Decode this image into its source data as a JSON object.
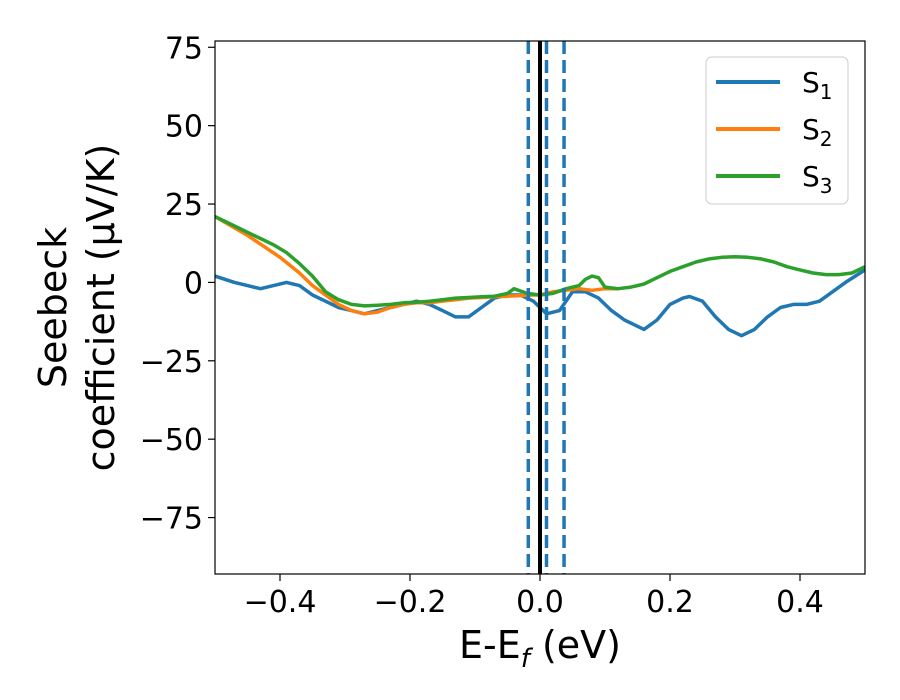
{
  "chart_data": {
    "type": "line",
    "xlabel": {
      "main": "E-E",
      "sub": "f",
      "unit": " (eV)"
    },
    "ylabel": {
      "line1": "Seebeck",
      "line2": "coefficient  (μV/K)"
    },
    "xlim": [
      -0.5,
      0.5
    ],
    "ylim": [
      -93,
      77
    ],
    "xticks": [
      -0.4,
      -0.2,
      0.0,
      0.2,
      0.4
    ],
    "xtick_labels": [
      "−0.4",
      "−0.2",
      "0.0",
      "0.2",
      "0.4"
    ],
    "yticks": [
      75,
      50,
      25,
      0,
      -25,
      -50,
      -75
    ],
    "ytick_labels": [
      "75",
      "50",
      "25",
      "0",
      "−25",
      "−50",
      "−75"
    ],
    "grid": false,
    "legend_position": "top-right",
    "series": [
      {
        "name": "S",
        "sub": "1",
        "color": "#1f77b4",
        "x": [
          -0.5,
          -0.47,
          -0.45,
          -0.43,
          -0.41,
          -0.39,
          -0.37,
          -0.35,
          -0.33,
          -0.31,
          -0.29,
          -0.27,
          -0.25,
          -0.23,
          -0.21,
          -0.19,
          -0.17,
          -0.15,
          -0.13,
          -0.11,
          -0.09,
          -0.07,
          -0.05,
          -0.03,
          -0.01,
          0.0,
          0.01,
          0.03,
          0.05,
          0.07,
          0.09,
          0.11,
          0.13,
          0.15,
          0.16,
          0.18,
          0.2,
          0.22,
          0.23,
          0.25,
          0.27,
          0.29,
          0.31,
          0.33,
          0.35,
          0.37,
          0.39,
          0.41,
          0.43,
          0.45,
          0.47,
          0.5
        ],
        "y": [
          2,
          0,
          -1,
          -2,
          -1,
          0,
          -1,
          -4,
          -6,
          -8,
          -9,
          -10,
          -9,
          -8,
          -7,
          -6,
          -7,
          -9,
          -11,
          -11,
          -8,
          -5,
          -4,
          -4,
          -6,
          -8,
          -10,
          -9,
          -3,
          -3,
          -5,
          -9,
          -12,
          -14,
          -15,
          -12,
          -7,
          -5,
          -4.5,
          -6,
          -11,
          -15,
          -17,
          -15,
          -11,
          -8,
          -7,
          -7,
          -6,
          -3,
          0,
          4
        ]
      },
      {
        "name": "S",
        "sub": "2",
        "color": "#ff7f0e",
        "x": [
          -0.5,
          -0.45,
          -0.4,
          -0.37,
          -0.35,
          -0.33,
          -0.31,
          -0.29,
          -0.27,
          -0.25,
          -0.23,
          -0.21,
          -0.19,
          -0.17,
          -0.15,
          -0.13,
          -0.11,
          -0.09,
          -0.07,
          -0.05,
          -0.03,
          -0.01,
          0.0,
          0.02,
          0.04,
          0.06,
          0.08,
          0.1,
          0.12
        ],
        "y": [
          21,
          15,
          8,
          3,
          -1,
          -4,
          -7,
          -9,
          -10,
          -9.5,
          -8,
          -7,
          -6.5,
          -6.5,
          -6,
          -5.5,
          -5,
          -4.8,
          -4.6,
          -4.4,
          -4.2,
          -4,
          -4,
          -3,
          -2.5,
          -2,
          -2.5,
          -2,
          -2
        ]
      },
      {
        "name": "S",
        "sub": "3",
        "color": "#2ca02c",
        "x": [
          -0.5,
          -0.47,
          -0.45,
          -0.43,
          -0.41,
          -0.39,
          -0.37,
          -0.35,
          -0.33,
          -0.31,
          -0.29,
          -0.27,
          -0.25,
          -0.23,
          -0.21,
          -0.19,
          -0.17,
          -0.15,
          -0.13,
          -0.11,
          -0.09,
          -0.07,
          -0.05,
          -0.04,
          -0.02,
          0.0,
          0.02,
          0.04,
          0.06,
          0.07,
          0.08,
          0.09,
          0.1,
          0.12,
          0.14,
          0.16,
          0.18,
          0.2,
          0.22,
          0.24,
          0.26,
          0.28,
          0.3,
          0.32,
          0.34,
          0.36,
          0.38,
          0.4,
          0.42,
          0.44,
          0.46,
          0.48,
          0.5
        ],
        "y": [
          21,
          18,
          16,
          14,
          12,
          9.5,
          6,
          2,
          -3,
          -5.5,
          -7,
          -7.5,
          -7.3,
          -7,
          -6.5,
          -6.3,
          -6,
          -5.5,
          -5,
          -4.8,
          -4.6,
          -4.4,
          -3.5,
          -2,
          -3.5,
          -4,
          -3.5,
          -2,
          -1,
          1,
          2,
          1.5,
          -1.5,
          -2,
          -1.5,
          -0.5,
          1.5,
          3.5,
          5,
          6.5,
          7.5,
          8,
          8.2,
          8,
          7.5,
          6.5,
          5,
          4,
          3,
          2.5,
          2.5,
          3,
          5
        ]
      }
    ],
    "vlines": [
      {
        "x": 0.0,
        "style": "solid",
        "color": "#000000"
      },
      {
        "x": -0.018,
        "style": "dashed",
        "color": "#1f77b4"
      },
      {
        "x": 0.01,
        "style": "dashed",
        "color": "#1f77b4"
      },
      {
        "x": 0.037,
        "style": "dashed",
        "color": "#1f77b4"
      }
    ]
  }
}
